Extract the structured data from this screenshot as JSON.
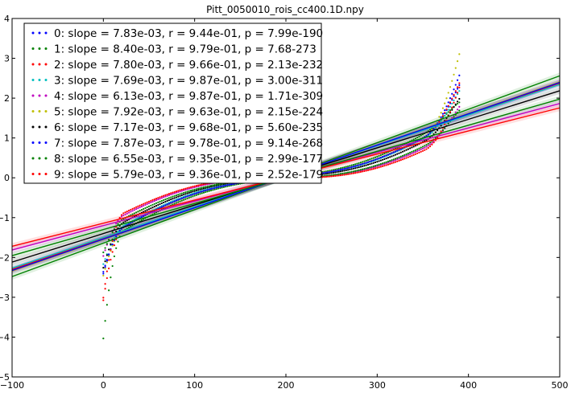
{
  "chart_data": {
    "type": "scatter",
    "title": "Pitt_0050010_rois_cc400.1D.npy",
    "xlabel": "",
    "ylabel": "",
    "xlim": [
      -100,
      500
    ],
    "ylim": [
      -5,
      4
    ],
    "xticks": [
      "−100",
      "0",
      "100",
      "200",
      "300",
      "400",
      "500"
    ],
    "yticks": [
      "−5",
      "−4",
      "−3",
      "−2",
      "−1",
      "0",
      "1",
      "2",
      "3",
      "4"
    ],
    "legend_position": "top-left",
    "grid": false,
    "n_points": 391,
    "series": [
      {
        "name": "0: slope = 7.83e-03, r = 9.44e-01, p = 7.99e-190",
        "color": "#0000ff",
        "slope": 0.00783,
        "intercept": -1.53,
        "ymin": -2.45,
        "ymax": 2.35
      },
      {
        "name": "1: slope = 8.40e-03, r = 9.79e-01, p = 7.68-273",
        "color": "#008000",
        "slope": 0.0084,
        "intercept": -1.64,
        "ymin": -4.15,
        "ymax": 1.9
      },
      {
        "name": "2: slope = 7.80e-03, r = 9.66e-01, p = 2.13e-232",
        "color": "#ff0000",
        "slope": 0.0078,
        "intercept": -1.52,
        "ymin": -3.15,
        "ymax": 2.4
      },
      {
        "name": "3: slope = 7.69e-03, r = 9.87e-01, p = 3.00e-311",
        "color": "#00bfbf",
        "slope": 0.00769,
        "intercept": -1.5,
        "ymin": -2.2,
        "ymax": 2.2
      },
      {
        "name": "4: slope = 6.13e-03, r = 9.87e-01, p = 1.71e-309",
        "color": "#bf00bf",
        "slope": 0.00613,
        "intercept": -1.2,
        "ymin": -2.0,
        "ymax": 1.8
      },
      {
        "name": "5: slope = 7.92e-03, r = 9.63e-01, p = 2.15e-224",
        "color": "#bfbf00",
        "slope": 0.00792,
        "intercept": -1.55,
        "ymin": -2.5,
        "ymax": 3.15
      },
      {
        "name": "6: slope = 7.17e-03, r = 9.68e-01, p = 5.60e-235",
        "color": "#000000",
        "slope": 0.00717,
        "intercept": -1.4,
        "ymin": -2.3,
        "ymax": 2.0
      },
      {
        "name": "7: slope = 7.87e-03, r = 9.78e-01, p = 9.14e-268",
        "color": "#0000ff",
        "slope": 0.00787,
        "intercept": -1.54,
        "ymin": -2.4,
        "ymax": 2.6
      },
      {
        "name": "8: slope = 6.55e-03, r = 9.35e-01, p = 2.99e-177",
        "color": "#008000",
        "slope": 0.00655,
        "intercept": -1.3,
        "ymin": -1.9,
        "ymax": 1.7
      },
      {
        "name": "9: slope = 5.79e-03, r = 9.36e-01, p = 2.52e-179",
        "color": "#ff0000",
        "slope": 0.00579,
        "intercept": -1.14,
        "ymin": -3.1,
        "ymax": 2.3
      }
    ]
  }
}
